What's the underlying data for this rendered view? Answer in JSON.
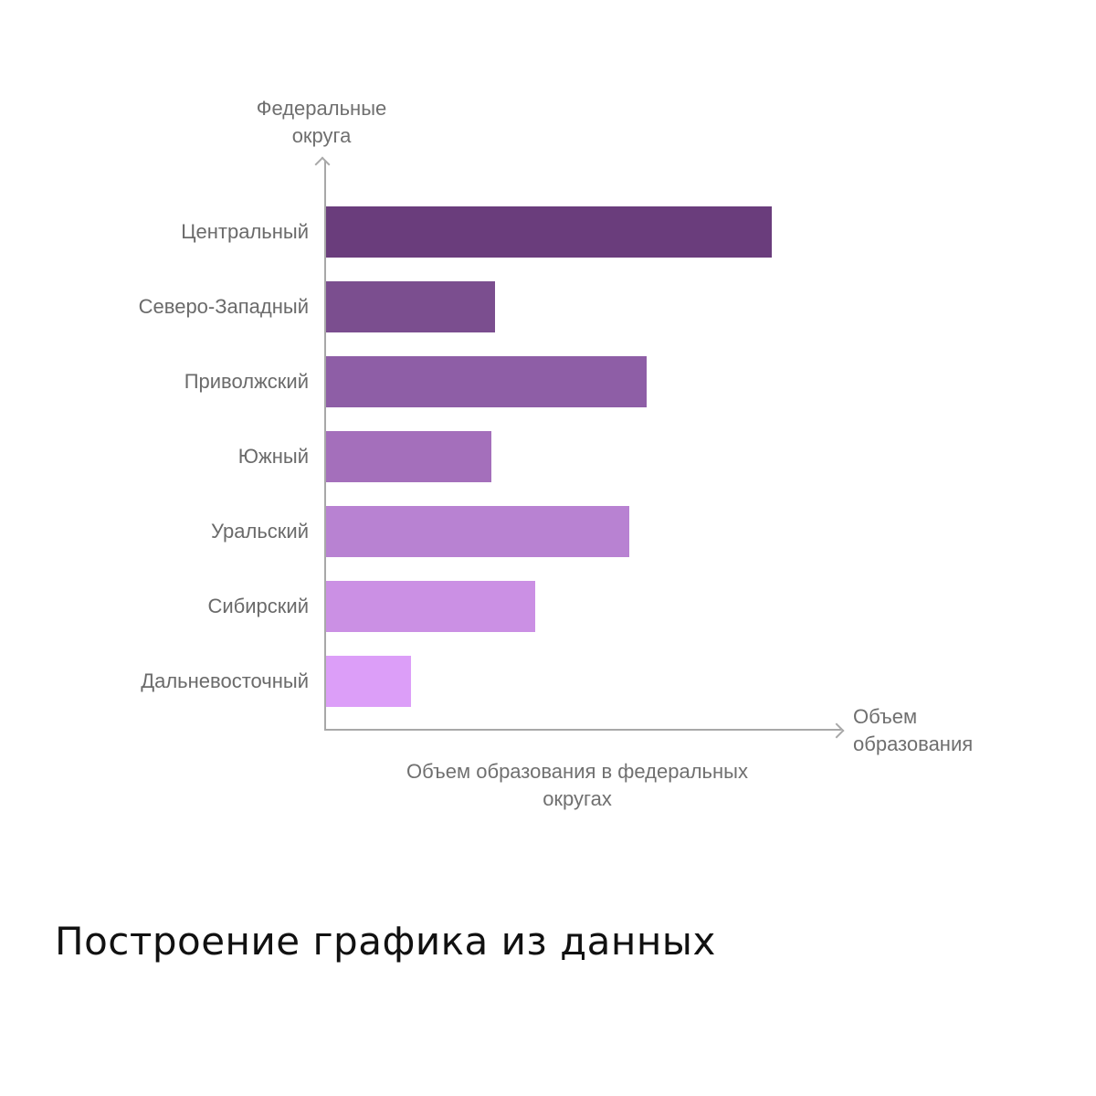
{
  "chart_data": {
    "type": "bar",
    "orientation": "horizontal",
    "title": "Объем образования в федеральных округах",
    "xlabel": "Объем образования",
    "ylabel": "Федеральные округа",
    "categories": [
      "Центральный",
      "Северо-Западный",
      "Приволжский",
      "Южный",
      "Уральский",
      "Сибирский",
      "Дальневосточный"
    ],
    "values": [
      100,
      38,
      72,
      37,
      68,
      47,
      19
    ],
    "value_note": "relative (no axis ticks shown); longest bar = 100",
    "colors": [
      "#6a3d7c",
      "#7b4e8f",
      "#8e5ea6",
      "#a46fbb",
      "#b882d2",
      "#cb90e4",
      "#dc9ef8"
    ],
    "grid": false,
    "legend": null
  },
  "labels": {
    "ylabel_line1": "Федеральные",
    "ylabel_line2": "округа",
    "xlabel_line1": "Объем",
    "xlabel_line2": "образования",
    "title_line1": "Объем образования в федеральных",
    "title_line2": "округах"
  },
  "caption": "Построение графика из данных"
}
